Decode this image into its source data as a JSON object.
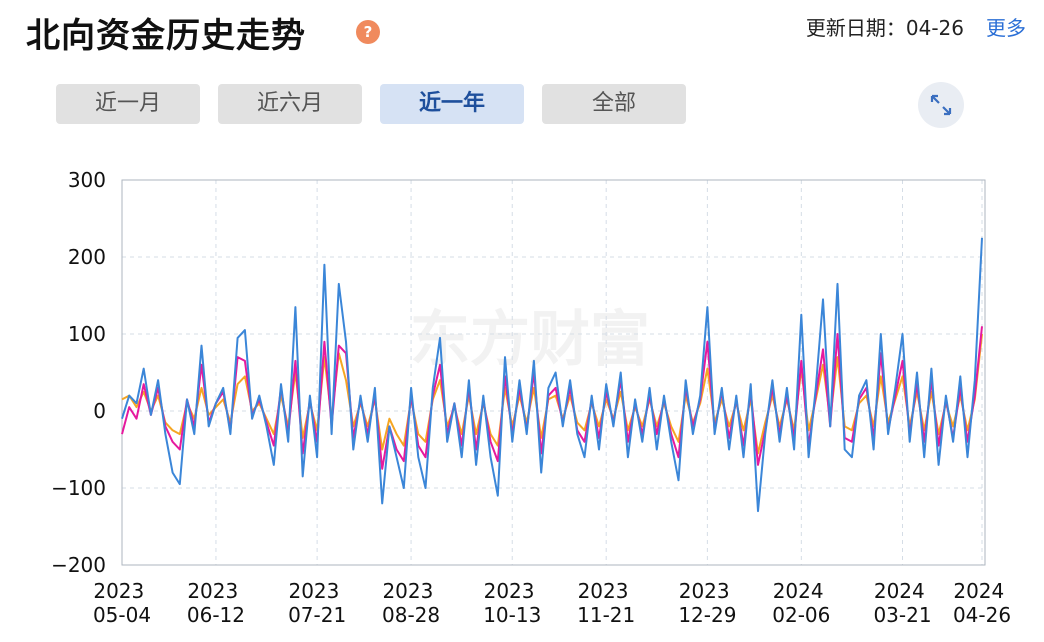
{
  "header": {
    "title": "北向资金历史走势",
    "help": "?",
    "update": "更新日期：04-26",
    "more": "更多"
  },
  "tabs": [
    {
      "label": "近一月",
      "active": false
    },
    {
      "label": "近六月",
      "active": false
    },
    {
      "label": "近一年",
      "active": true
    },
    {
      "label": "全部",
      "active": false
    }
  ],
  "chart_data": {
    "type": "line",
    "watermark": "东方财富",
    "grid": true,
    "ylim": [
      -200,
      300
    ],
    "yticks": [
      {
        "value": -200,
        "label": "−200"
      },
      {
        "value": -100,
        "label": "−100"
      },
      0,
      100,
      200,
      300
    ],
    "categories": [
      "2023 05-04",
      null,
      null,
      null,
      null,
      null,
      null,
      null,
      null,
      null,
      null,
      null,
      null,
      "2023 06-12",
      null,
      null,
      null,
      null,
      null,
      null,
      null,
      null,
      null,
      null,
      null,
      null,
      null,
      "2023 07-21",
      null,
      null,
      null,
      null,
      null,
      null,
      null,
      null,
      null,
      null,
      null,
      null,
      "2023 08-28",
      null,
      null,
      null,
      null,
      null,
      null,
      null,
      null,
      null,
      null,
      null,
      null,
      null,
      "2023 10-13",
      null,
      null,
      null,
      null,
      null,
      null,
      null,
      null,
      null,
      null,
      null,
      null,
      "2023 11-21",
      null,
      null,
      null,
      null,
      null,
      null,
      null,
      null,
      null,
      null,
      null,
      null,
      null,
      "2023 12-29",
      null,
      null,
      null,
      null,
      null,
      null,
      null,
      null,
      null,
      null,
      null,
      null,
      "2024 02-06",
      null,
      null,
      null,
      null,
      null,
      null,
      null,
      null,
      null,
      null,
      null,
      null,
      null,
      "2024 03-21",
      null,
      null,
      null,
      null,
      null,
      null,
      null,
      null,
      null,
      null,
      "2024 04-26"
    ],
    "series": [
      {
        "color": "#f5a623",
        "values": [
          15,
          20,
          5,
          25,
          0,
          20,
          -15,
          -25,
          -30,
          10,
          -10,
          30,
          -5,
          5,
          15,
          -15,
          35,
          45,
          0,
          10,
          -10,
          -30,
          20,
          -20,
          50,
          -35,
          10,
          -25,
          70,
          -10,
          75,
          40,
          -20,
          10,
          -20,
          15,
          -50,
          -10,
          -30,
          -45,
          15,
          -30,
          -40,
          15,
          40,
          -20,
          5,
          -30,
          20,
          -30,
          10,
          -30,
          -45,
          30,
          -20,
          20,
          -15,
          30,
          -35,
          15,
          20,
          -10,
          20,
          -15,
          -25,
          10,
          -20,
          15,
          -10,
          25,
          -25,
          5,
          -20,
          15,
          -20,
          10,
          -20,
          -40,
          20,
          -15,
          10,
          55,
          -15,
          15,
          -20,
          10,
          -25,
          15,
          -55,
          -15,
          20,
          -20,
          15,
          -25,
          55,
          -25,
          15,
          60,
          -10,
          70,
          -20,
          -25,
          10,
          20,
          -20,
          45,
          -15,
          15,
          45,
          -20,
          25,
          -25,
          25,
          -30,
          10,
          -20,
          20,
          -25,
          15,
          100
        ]
      },
      {
        "color": "#e6199e",
        "values": [
          -30,
          5,
          -10,
          35,
          -5,
          30,
          -20,
          -40,
          -50,
          15,
          -20,
          60,
          -15,
          10,
          25,
          -25,
          70,
          65,
          -5,
          15,
          -15,
          -45,
          30,
          -30,
          65,
          -55,
          15,
          -40,
          90,
          -20,
          85,
          75,
          -35,
          15,
          -30,
          20,
          -75,
          -20,
          -50,
          -65,
          20,
          -45,
          -60,
          20,
          60,
          -30,
          10,
          -45,
          30,
          -50,
          15,
          -40,
          -65,
          45,
          -30,
          30,
          -25,
          50,
          -55,
          20,
          30,
          -15,
          30,
          -25,
          -40,
          15,
          -35,
          25,
          -15,
          40,
          -40,
          10,
          -30,
          20,
          -30,
          15,
          -30,
          -60,
          30,
          -20,
          15,
          90,
          -25,
          25,
          -35,
          15,
          -45,
          25,
          -70,
          -25,
          30,
          -30,
          20,
          -35,
          65,
          -45,
          20,
          80,
          -20,
          100,
          -35,
          -40,
          15,
          30,
          -35,
          75,
          -25,
          20,
          65,
          -30,
          35,
          -40,
          40,
          -45,
          15,
          -35,
          30,
          -40,
          20,
          110
        ]
      },
      {
        "color": "#3b86d8",
        "values": [
          -10,
          20,
          10,
          55,
          -5,
          40,
          -30,
          -80,
          -95,
          15,
          -30,
          85,
          -20,
          10,
          30,
          -30,
          95,
          105,
          -10,
          20,
          -20,
          -70,
          35,
          -40,
          135,
          -85,
          20,
          -60,
          190,
          -30,
          165,
          90,
          -50,
          20,
          -40,
          30,
          -120,
          -20,
          -60,
          -100,
          30,
          -60,
          -100,
          30,
          95,
          -40,
          10,
          -60,
          40,
          -70,
          20,
          -60,
          -110,
          70,
          -40,
          40,
          -30,
          65,
          -80,
          30,
          50,
          -20,
          40,
          -30,
          -60,
          20,
          -50,
          35,
          -20,
          50,
          -60,
          15,
          -40,
          30,
          -50,
          20,
          -40,
          -90,
          40,
          -30,
          20,
          135,
          -30,
          30,
          -50,
          20,
          -60,
          35,
          -130,
          -30,
          40,
          -40,
          30,
          -50,
          125,
          -60,
          30,
          145,
          -20,
          165,
          -50,
          -60,
          20,
          40,
          -50,
          100,
          -30,
          30,
          100,
          -40,
          50,
          -60,
          55,
          -70,
          20,
          -40,
          45,
          -60,
          40,
          225
        ]
      }
    ]
  }
}
